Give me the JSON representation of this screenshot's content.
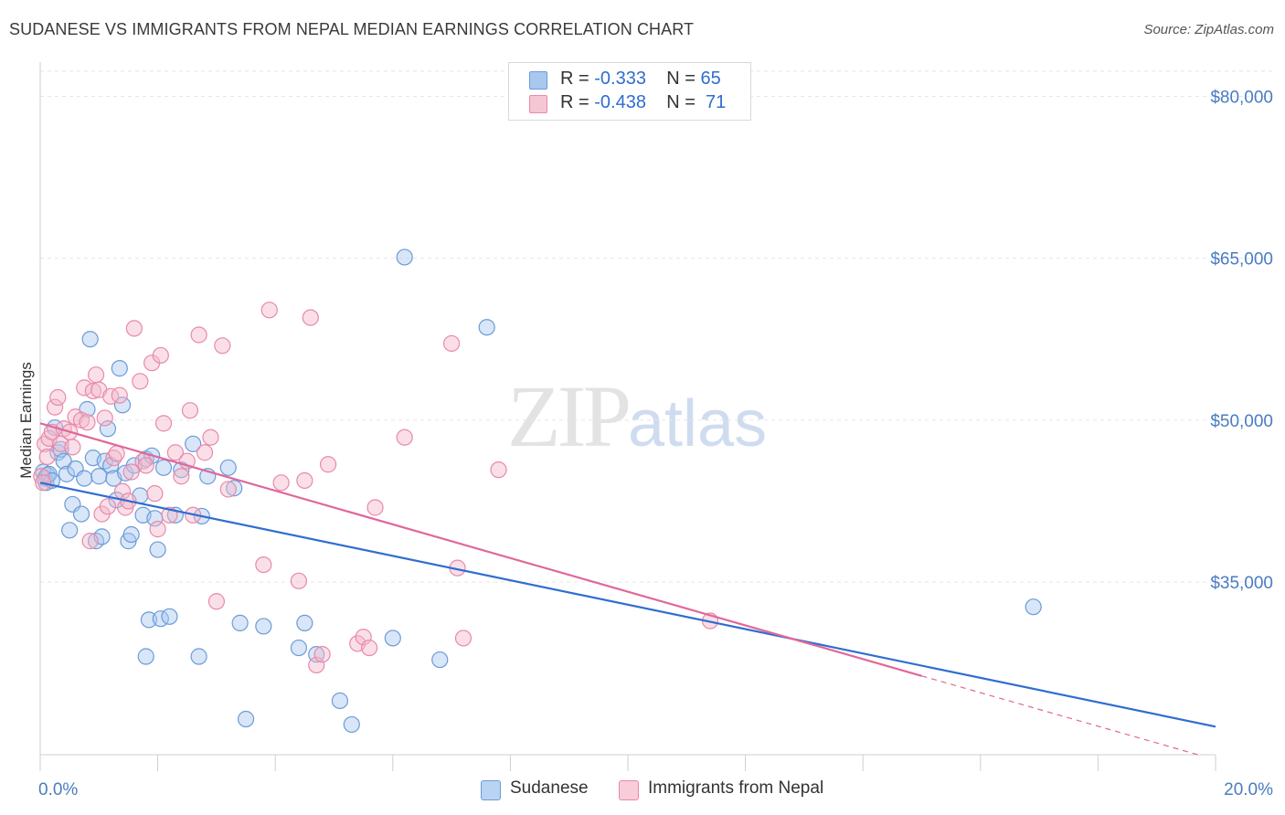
{
  "title": "SUDANESE VS IMMIGRANTS FROM NEPAL MEDIAN EARNINGS CORRELATION CHART",
  "source": "Source: ZipAtlas.com",
  "watermark": {
    "zip": "ZIP",
    "atlas": "atlas"
  },
  "legend_top": {
    "rows": [
      {
        "r_label": "R =",
        "r_value": "-0.333",
        "n_label": "N =",
        "n_value": "65"
      },
      {
        "r_label": "R =",
        "r_value": "-0.438",
        "n_label": "N =",
        "n_value": "71"
      }
    ]
  },
  "colors": {
    "blue_fill": "#a9c8f0",
    "blue_stroke": "#6b9bd8",
    "blue_line": "#2f6dd0",
    "pink_fill": "#f5b8cb",
    "pink_stroke": "#e88aa8",
    "pink_line": "#e0679a",
    "grid": "#e6e6e6",
    "axis_text": "#4a7cc2"
  },
  "chart_data": {
    "type": "scatter",
    "title": "SUDANESE VS IMMIGRANTS FROM NEPAL MEDIAN EARNINGS CORRELATION CHART",
    "xlabel": "",
    "ylabel": "Median Earnings",
    "xlim": [
      0,
      20
    ],
    "ylim": [
      19000,
      83000
    ],
    "x_tick_labels": [
      "0.0%",
      "20.0%"
    ],
    "y_ticks": [
      35000,
      50000,
      65000,
      80000
    ],
    "y_tick_labels": [
      "$35,000",
      "$50,000",
      "$65,000",
      "$80,000"
    ],
    "grid": true,
    "legend_position": "bottom",
    "series": [
      {
        "name": "Sudanese",
        "r": -0.333,
        "n": 65,
        "trend": {
          "x0": 0,
          "y0": 44200,
          "x1": 20,
          "y1": 21600
        },
        "points": [
          [
            0.05,
            45200
          ],
          [
            0.08,
            44600
          ],
          [
            0.1,
            44200
          ],
          [
            0.12,
            44900
          ],
          [
            0.15,
            45000
          ],
          [
            0.2,
            44400
          ],
          [
            0.25,
            49300
          ],
          [
            0.3,
            47000
          ],
          [
            0.35,
            47300
          ],
          [
            0.4,
            46200
          ],
          [
            0.45,
            45000
          ],
          [
            0.5,
            39800
          ],
          [
            0.55,
            42200
          ],
          [
            0.6,
            45500
          ],
          [
            0.7,
            41300
          ],
          [
            0.75,
            44600
          ],
          [
            0.8,
            51000
          ],
          [
            0.85,
            57500
          ],
          [
            0.9,
            46500
          ],
          [
            0.95,
            38800
          ],
          [
            1.0,
            44800
          ],
          [
            1.05,
            39200
          ],
          [
            1.1,
            46200
          ],
          [
            1.15,
            49200
          ],
          [
            1.2,
            45800
          ],
          [
            1.25,
            44600
          ],
          [
            1.3,
            42600
          ],
          [
            1.35,
            54800
          ],
          [
            1.4,
            51400
          ],
          [
            1.45,
            45100
          ],
          [
            1.5,
            38800
          ],
          [
            1.55,
            39400
          ],
          [
            1.6,
            45800
          ],
          [
            1.7,
            43000
          ],
          [
            1.75,
            41200
          ],
          [
            1.8,
            46400
          ],
          [
            1.85,
            31500
          ],
          [
            1.9,
            46700
          ],
          [
            1.95,
            40900
          ],
          [
            2.0,
            38000
          ],
          [
            2.05,
            31600
          ],
          [
            2.1,
            45600
          ],
          [
            2.2,
            31800
          ],
          [
            2.3,
            41200
          ],
          [
            2.4,
            45400
          ],
          [
            2.6,
            47800
          ],
          [
            2.7,
            28100
          ],
          [
            2.75,
            41100
          ],
          [
            2.85,
            44800
          ],
          [
            3.2,
            45600
          ],
          [
            3.3,
            43700
          ],
          [
            3.4,
            31200
          ],
          [
            3.5,
            22300
          ],
          [
            3.8,
            30900
          ],
          [
            4.4,
            28900
          ],
          [
            4.5,
            31200
          ],
          [
            4.7,
            28300
          ],
          [
            5.1,
            24000
          ],
          [
            5.3,
            21800
          ],
          [
            6.0,
            29800
          ],
          [
            6.2,
            65100
          ],
          [
            6.8,
            27800
          ],
          [
            7.6,
            58600
          ],
          [
            16.9,
            32700
          ],
          [
            1.8,
            28100
          ]
        ]
      },
      {
        "name": "Immigrants from Nepal",
        "r": -0.438,
        "n": 71,
        "trend": {
          "x0": 0,
          "y0": 49700,
          "x1": 15,
          "y1": 26300
        },
        "trend_dashed": {
          "x0": 15,
          "y0": 26300,
          "x1": 19.7,
          "y1": 19000
        },
        "points": [
          [
            0.02,
            44800
          ],
          [
            0.05,
            44200
          ],
          [
            0.08,
            47800
          ],
          [
            0.12,
            46600
          ],
          [
            0.15,
            48300
          ],
          [
            0.2,
            48900
          ],
          [
            0.25,
            51200
          ],
          [
            0.3,
            52100
          ],
          [
            0.35,
            47800
          ],
          [
            0.4,
            49200
          ],
          [
            0.5,
            48900
          ],
          [
            0.55,
            47500
          ],
          [
            0.6,
            50300
          ],
          [
            0.7,
            50000
          ],
          [
            0.75,
            53000
          ],
          [
            0.8,
            49800
          ],
          [
            0.85,
            38800
          ],
          [
            0.9,
            52700
          ],
          [
            0.95,
            54200
          ],
          [
            1.0,
            52800
          ],
          [
            1.05,
            41300
          ],
          [
            1.1,
            50200
          ],
          [
            1.15,
            42000
          ],
          [
            1.2,
            52200
          ],
          [
            1.25,
            46500
          ],
          [
            1.3,
            46900
          ],
          [
            1.35,
            52300
          ],
          [
            1.4,
            43400
          ],
          [
            1.45,
            41900
          ],
          [
            1.5,
            42500
          ],
          [
            1.55,
            45200
          ],
          [
            1.6,
            58500
          ],
          [
            1.7,
            53600
          ],
          [
            1.75,
            46200
          ],
          [
            1.8,
            45800
          ],
          [
            1.9,
            55300
          ],
          [
            1.95,
            43200
          ],
          [
            2.0,
            39900
          ],
          [
            2.05,
            56000
          ],
          [
            2.1,
            49700
          ],
          [
            2.2,
            41200
          ],
          [
            2.3,
            47000
          ],
          [
            2.4,
            44800
          ],
          [
            2.5,
            46200
          ],
          [
            2.55,
            50900
          ],
          [
            2.6,
            41200
          ],
          [
            2.7,
            57900
          ],
          [
            2.8,
            47000
          ],
          [
            2.9,
            48400
          ],
          [
            3.0,
            33200
          ],
          [
            3.1,
            56900
          ],
          [
            3.2,
            43600
          ],
          [
            3.8,
            36600
          ],
          [
            3.9,
            60200
          ],
          [
            4.1,
            44200
          ],
          [
            4.4,
            35100
          ],
          [
            4.5,
            44400
          ],
          [
            4.6,
            59500
          ],
          [
            4.7,
            27300
          ],
          [
            4.8,
            28300
          ],
          [
            4.9,
            45900
          ],
          [
            5.4,
            29300
          ],
          [
            5.5,
            29900
          ],
          [
            5.6,
            28900
          ],
          [
            5.7,
            41900
          ],
          [
            6.2,
            48400
          ],
          [
            7.0,
            57100
          ],
          [
            7.1,
            36300
          ],
          [
            7.2,
            29800
          ],
          [
            7.8,
            45400
          ],
          [
            11.4,
            31400
          ]
        ]
      }
    ]
  }
}
